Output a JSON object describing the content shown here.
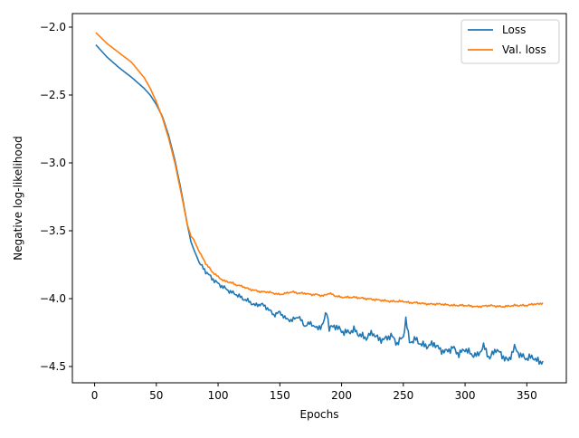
{
  "chart_data": {
    "type": "line",
    "title": "",
    "xlabel": "Epochs",
    "ylabel": "Negative log-likelihood",
    "xlim": [
      -18,
      382
    ],
    "ylim": [
      -4.62,
      -1.9
    ],
    "xticks": [
      0,
      50,
      100,
      150,
      200,
      250,
      300,
      350
    ],
    "xtick_labels": [
      "0",
      "50",
      "100",
      "150",
      "200",
      "250",
      "300",
      "350"
    ],
    "yticks": [
      -2.0,
      -2.5,
      -3.0,
      -3.5,
      -4.0,
      -4.5
    ],
    "ytick_labels": [
      "−2.0",
      "−2.5",
      "−3.0",
      "−3.5",
      "−4.0",
      "−4.5"
    ],
    "grid": false,
    "legend_position": "upper right",
    "series": [
      {
        "name": "Loss",
        "color": "#1f77b4",
        "x": [
          1,
          10,
          20,
          30,
          40,
          45,
          50,
          55,
          60,
          65,
          70,
          75,
          78,
          80,
          85,
          90,
          95,
          100,
          105,
          110,
          115,
          120,
          125,
          130,
          135,
          140,
          145,
          150,
          155,
          160,
          165,
          170,
          175,
          180,
          185,
          188,
          190,
          195,
          200,
          205,
          210,
          215,
          220,
          225,
          230,
          235,
          240,
          245,
          250,
          252,
          255,
          260,
          265,
          270,
          275,
          280,
          285,
          290,
          295,
          300,
          305,
          310,
          315,
          320,
          325,
          330,
          335,
          340,
          345,
          350,
          355,
          360,
          363
        ],
        "values": [
          -2.13,
          -2.22,
          -2.3,
          -2.37,
          -2.45,
          -2.5,
          -2.57,
          -2.66,
          -2.8,
          -2.98,
          -3.2,
          -3.45,
          -3.58,
          -3.63,
          -3.74,
          -3.8,
          -3.85,
          -3.89,
          -3.92,
          -3.95,
          -3.97,
          -4.0,
          -4.02,
          -4.05,
          -4.04,
          -4.07,
          -4.12,
          -4.1,
          -4.15,
          -4.16,
          -4.13,
          -4.2,
          -4.18,
          -4.22,
          -4.19,
          -4.09,
          -4.22,
          -4.2,
          -4.24,
          -4.25,
          -4.23,
          -4.27,
          -4.29,
          -4.25,
          -4.3,
          -4.3,
          -4.27,
          -4.33,
          -4.28,
          -4.15,
          -4.32,
          -4.3,
          -4.34,
          -4.35,
          -4.33,
          -4.38,
          -4.39,
          -4.36,
          -4.41,
          -4.37,
          -4.41,
          -4.42,
          -4.35,
          -4.44,
          -4.37,
          -4.42,
          -4.46,
          -4.36,
          -4.42,
          -4.44,
          -4.43,
          -4.47,
          -4.46
        ]
      },
      {
        "name": "Val. loss",
        "color": "#ff7f0e",
        "x": [
          1,
          10,
          20,
          30,
          40,
          45,
          50,
          55,
          60,
          65,
          70,
          75,
          78,
          80,
          85,
          90,
          95,
          100,
          105,
          110,
          115,
          120,
          125,
          130,
          135,
          140,
          145,
          150,
          155,
          160,
          165,
          170,
          175,
          180,
          185,
          190,
          195,
          200,
          210,
          220,
          230,
          240,
          250,
          255,
          260,
          270,
          280,
          290,
          300,
          310,
          320,
          330,
          340,
          350,
          355,
          360,
          363
        ],
        "values": [
          -2.04,
          -2.12,
          -2.19,
          -2.26,
          -2.37,
          -2.45,
          -2.55,
          -2.67,
          -2.82,
          -3.0,
          -3.22,
          -3.45,
          -3.54,
          -3.56,
          -3.66,
          -3.74,
          -3.8,
          -3.84,
          -3.87,
          -3.88,
          -3.9,
          -3.91,
          -3.93,
          -3.94,
          -3.95,
          -3.95,
          -3.96,
          -3.97,
          -3.96,
          -3.95,
          -3.96,
          -3.96,
          -3.97,
          -3.97,
          -3.98,
          -3.96,
          -3.98,
          -3.99,
          -3.99,
          -4.0,
          -4.01,
          -4.02,
          -4.02,
          -4.03,
          -4.03,
          -4.04,
          -4.04,
          -4.05,
          -4.05,
          -4.06,
          -4.05,
          -4.06,
          -4.05,
          -4.05,
          -4.04,
          -4.04,
          -4.03
        ]
      }
    ]
  }
}
